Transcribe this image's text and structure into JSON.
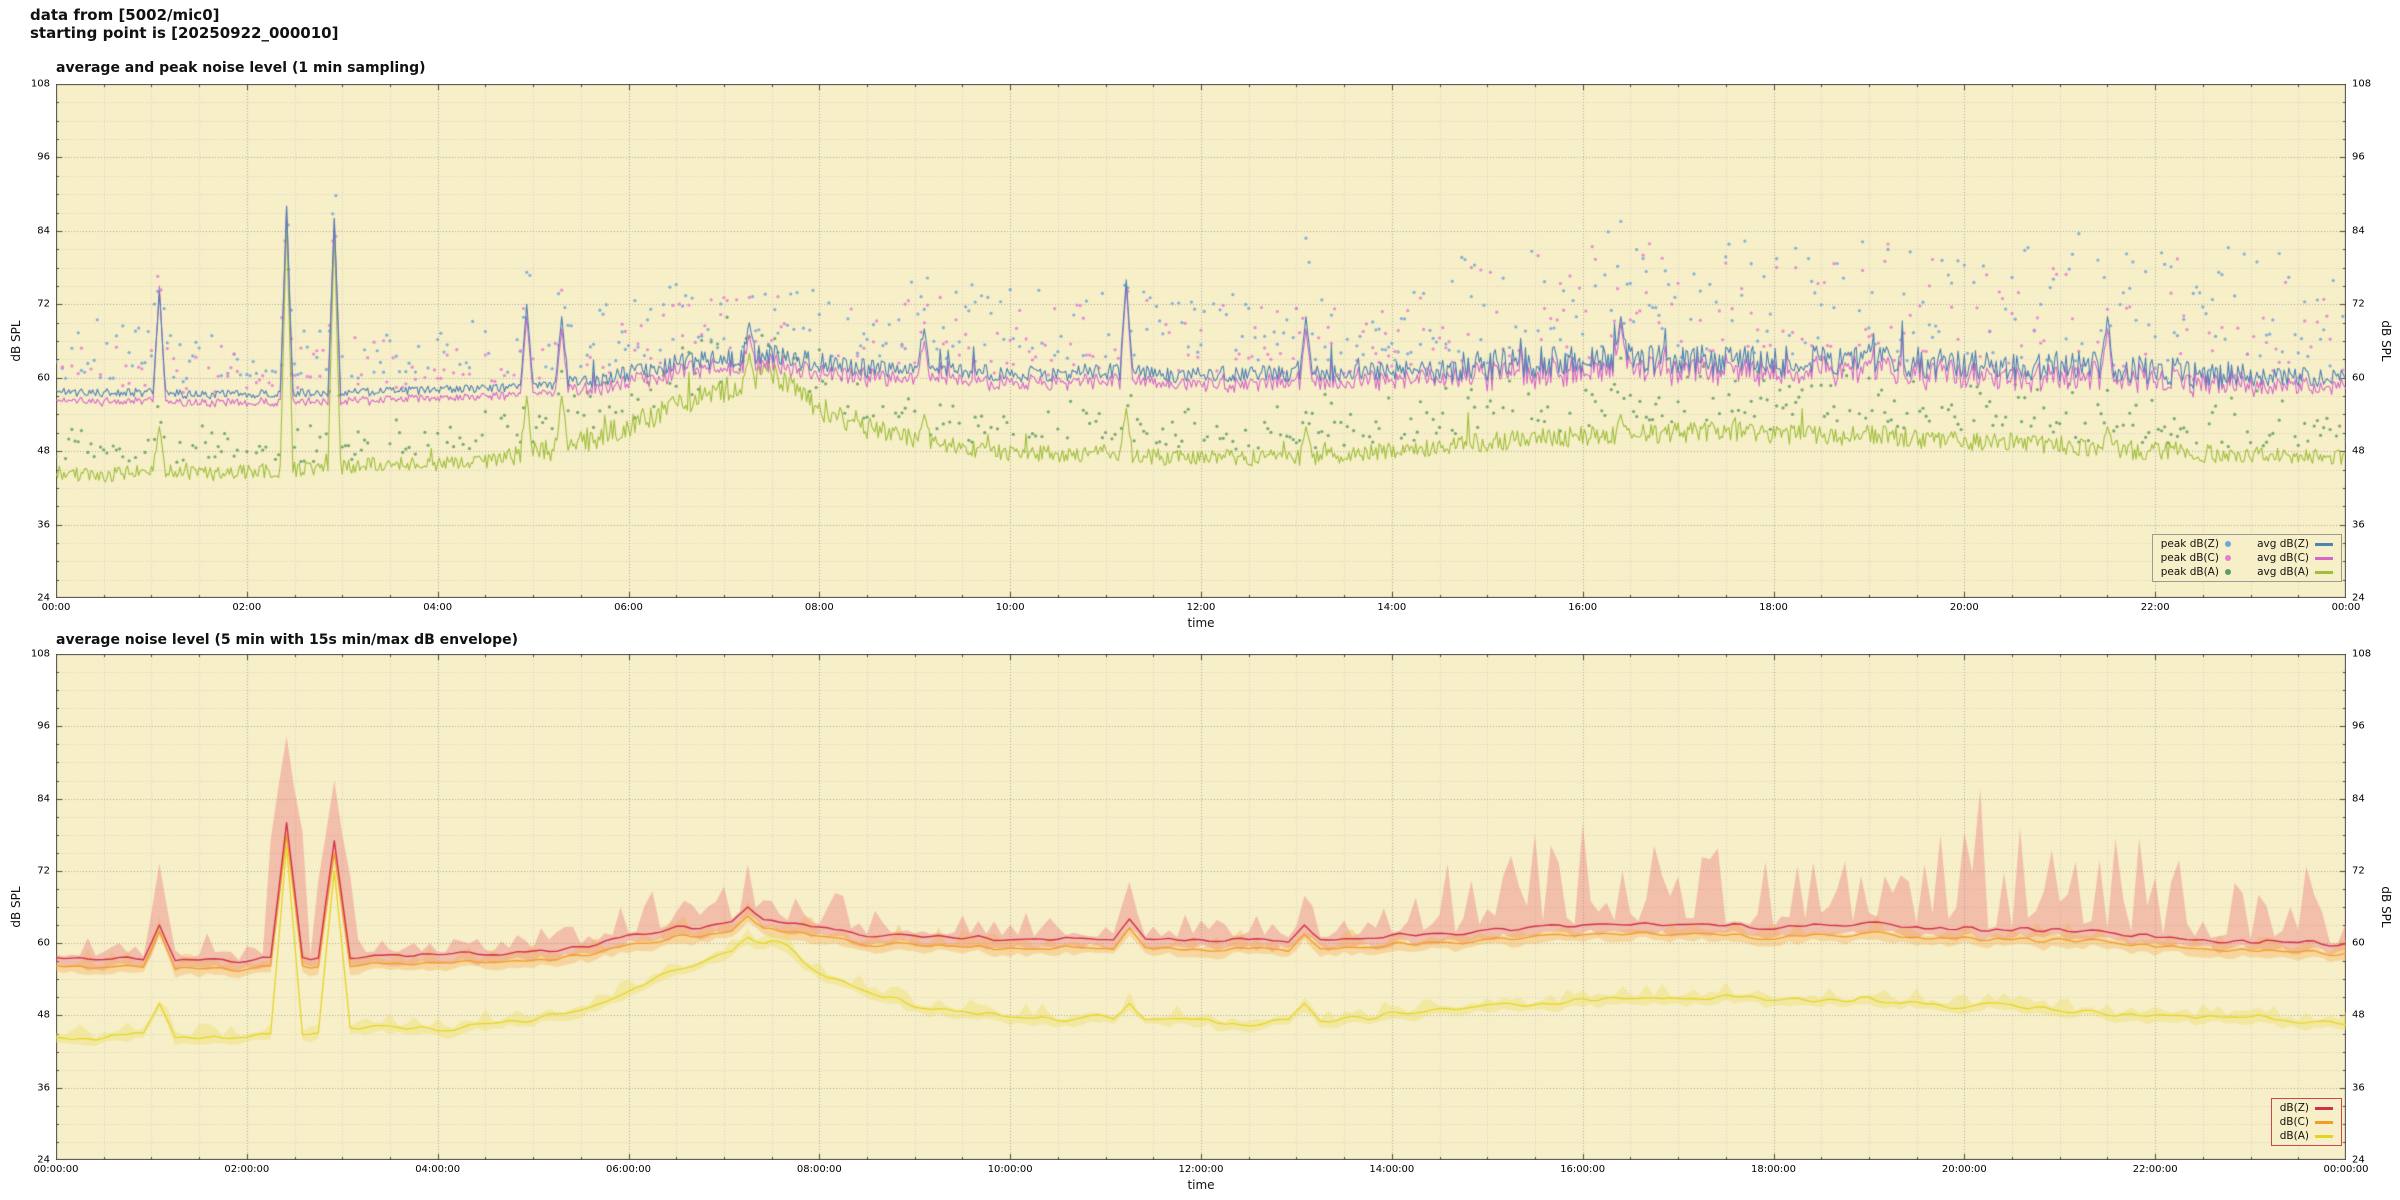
{
  "header": {
    "line1": "data from [5002/mic0]",
    "line2": "starting point is [20250922_000010]"
  },
  "colors": {
    "plot_bg": "#f7efc8",
    "grid_major": "#9a9a96",
    "grid_minor": "#c4beac",
    "border": "#4a4a46",
    "avg_z": "#4e81b4",
    "avg_c": "#d668c8",
    "avg_a": "#9fbf3b",
    "peak_z": "#6fa6dc",
    "peak_c": "#e77ad2",
    "peak_a": "#5f9d62",
    "db_z": "#d23050",
    "db_c": "#f29e24",
    "db_a": "#e6d51e",
    "env_z": "rgba(231,112,121,0.38)",
    "env_c": "rgba(246,178,96,0.40)",
    "env_a": "rgba(236,221,110,0.42)",
    "legend_border_1": "#9a9a96",
    "legend_border_2": "#cc4455"
  },
  "chart_data": [
    {
      "type": "line+scatter",
      "title": "average and peak noise level (1 min sampling)",
      "xlabel": "time",
      "ylabel": "dB SPL",
      "ylim": [
        24,
        108
      ],
      "y_ticks": [
        24,
        36,
        48,
        60,
        72,
        84,
        96,
        108
      ],
      "x_range_hours": [
        0,
        24
      ],
      "x_tick_labels": [
        "00:00",
        "02:00",
        "04:00",
        "06:00",
        "08:00",
        "10:00",
        "12:00",
        "14:00",
        "16:00",
        "18:00",
        "20:00",
        "22:00",
        "00:00"
      ],
      "anchor_hours_step": 0.5,
      "series": [
        {
          "name": "avg dB(Z)",
          "kind": "line",
          "color_key": "avg_z",
          "values": [
            57.8,
            57.5,
            57.6,
            57.2,
            57.3,
            57.5,
            57.6,
            57.8,
            58.0,
            58.2,
            58.6,
            59.5,
            61.0,
            62.5,
            63.0,
            64.0,
            62.5,
            61.5,
            61.2,
            61.0,
            60.6,
            60.8,
            61.0,
            60.6,
            60.4,
            60.6,
            60.5,
            60.8,
            61.2,
            61.5,
            62.0,
            62.5,
            63.0,
            63.2,
            63.0,
            62.8,
            62.6,
            62.8,
            63.0,
            62.6,
            62.4,
            62.2,
            62.0,
            61.6,
            61.0,
            60.6,
            60.4,
            60.2,
            59.8
          ]
        },
        {
          "name": "avg dB(C)",
          "kind": "line",
          "color_key": "avg_c",
          "values": [
            56.4,
            56.1,
            56.2,
            55.8,
            55.9,
            56.1,
            56.2,
            56.4,
            56.6,
            56.8,
            57.2,
            58.1,
            59.5,
            61.0,
            61.5,
            62.5,
            61.0,
            60.0,
            59.7,
            59.5,
            59.1,
            59.3,
            59.5,
            59.1,
            58.9,
            59.1,
            59.0,
            59.3,
            59.7,
            60.0,
            60.5,
            61.0,
            61.4,
            61.6,
            61.4,
            61.2,
            61.0,
            61.2,
            61.4,
            61.0,
            60.8,
            60.6,
            60.4,
            60.0,
            59.5,
            59.1,
            58.9,
            58.7,
            58.3
          ]
        },
        {
          "name": "avg dB(A)",
          "kind": "line",
          "color_key": "avg_a",
          "values": [
            44.5,
            44.0,
            45.0,
            44.2,
            44.6,
            45.0,
            45.4,
            46.0,
            45.8,
            46.2,
            47.5,
            49.5,
            52.0,
            55.5,
            58.0,
            61.0,
            55.0,
            52.0,
            50.0,
            48.5,
            47.8,
            47.5,
            47.8,
            47.0,
            47.2,
            46.8,
            47.0,
            47.4,
            48.0,
            48.6,
            49.5,
            50.0,
            50.5,
            50.8,
            51.0,
            51.4,
            50.8,
            50.4,
            50.8,
            50.0,
            49.6,
            49.8,
            48.8,
            48.4,
            48.0,
            47.6,
            47.6,
            47.2,
            46.8
          ]
        },
        {
          "name": "peak dB(Z)",
          "kind": "scatter",
          "color_key": "peak_z",
          "offset": 2.5,
          "prob": 0.6,
          "spread": {
            "t": [
              0,
              5,
              6,
              8.5,
              9,
              14,
              14.5,
              23,
              24
            ],
            "v": [
              9,
              9,
              11,
              11,
              12,
              12,
              18,
              18,
              13
            ]
          }
        },
        {
          "name": "peak dB(C)",
          "kind": "scatter",
          "color_key": "peak_c",
          "offset": 2.2,
          "prob": 0.55,
          "spread": {
            "t": [
              0,
              5,
              6,
              8.5,
              9,
              14,
              14.5,
              23,
              24
            ],
            "v": [
              8,
              8,
              10,
              10,
              11,
              11,
              17,
              17,
              12
            ]
          }
        },
        {
          "name": "peak dB(A)",
          "kind": "scatter",
          "color_key": "peak_a",
          "offset": 2.2,
          "prob": 0.65,
          "spread": {
            "t": [
              0,
              5,
              6,
              8.5,
              9,
              14,
              14.5,
              23,
              24
            ],
            "v": [
              5,
              5,
              8,
              8,
              6,
              6,
              8,
              8,
              6
            ]
          }
        }
      ],
      "jitter": {
        "z": {
          "t": [
            0,
            5,
            5.5,
            8.5,
            9,
            14,
            14.5,
            22.5,
            23,
            24
          ],
          "v": [
            0.7,
            0.7,
            1.6,
            1.6,
            1.3,
            1.5,
            2.6,
            2.6,
            1.8,
            1.5
          ]
        },
        "c": {
          "t": [
            0,
            5,
            5.5,
            8.5,
            9,
            14,
            14.5,
            22.5,
            23,
            24
          ],
          "v": [
            0.7,
            0.7,
            1.6,
            1.6,
            1.3,
            1.5,
            2.6,
            2.6,
            1.8,
            1.5
          ]
        },
        "a": {
          "t": [
            0,
            4.5,
            5,
            8.5,
            9,
            14,
            15,
            22,
            24
          ],
          "v": [
            1.2,
            1.2,
            2.0,
            2.0,
            1.4,
            1.4,
            1.7,
            1.6,
            1.3
          ]
        }
      },
      "spikes": [
        {
          "t": 1.08,
          "z": 74,
          "c": 75,
          "a": 52
        },
        {
          "t": 2.42,
          "z": 88,
          "c": 88,
          "a": 86
        },
        {
          "t": 2.92,
          "z": 86,
          "c": 86,
          "a": 84
        },
        {
          "t": 4.93,
          "z": 72,
          "c": 70,
          "a": 57
        },
        {
          "t": 5.3,
          "z": 70,
          "c": 68,
          "a": 57
        },
        {
          "t": 7.27,
          "z": 69,
          "c": 67,
          "a": 64
        },
        {
          "t": 9.1,
          "z": 68,
          "c": 66,
          "a": 54
        },
        {
          "t": 11.22,
          "z": 76,
          "c": 75,
          "a": 55
        },
        {
          "t": 13.1,
          "z": 70,
          "c": 68,
          "a": 52
        },
        {
          "t": 16.4,
          "z": 70,
          "c": 69,
          "a": 54
        },
        {
          "t": 21.5,
          "z": 70,
          "c": 68,
          "a": 52
        }
      ],
      "legend": {
        "items": [
          {
            "marker": "dot",
            "color_key": "peak_z",
            "label": "peak dB(Z)"
          },
          {
            "marker": "dot",
            "color_key": "peak_c",
            "label": "peak dB(C)"
          },
          {
            "marker": "dot",
            "color_key": "peak_a",
            "label": "peak dB(A)"
          },
          {
            "marker": "line",
            "color_key": "avg_z",
            "label": "avg dB(Z)"
          },
          {
            "marker": "line",
            "color_key": "avg_c",
            "label": "avg dB(C)"
          },
          {
            "marker": "line",
            "color_key": "avg_a",
            "label": "avg dB(A)"
          }
        ]
      }
    },
    {
      "type": "line+band",
      "title": "average noise level (5 min with 15s min/max dB envelope)",
      "xlabel": "time",
      "ylabel": "dB SPL",
      "ylim": [
        24,
        108
      ],
      "y_ticks": [
        24,
        36,
        48,
        60,
        72,
        84,
        96,
        108
      ],
      "x_range_hours": [
        0,
        24
      ],
      "x_tick_labels": [
        "00:00:00",
        "02:00:00",
        "04:00:00",
        "06:00:00",
        "08:00:00",
        "10:00:00",
        "12:00:00",
        "14:00:00",
        "16:00:00",
        "18:00:00",
        "20:00:00",
        "22:00:00",
        "00:00:00"
      ],
      "anchor_hours_step": 0.5,
      "series": [
        {
          "name": "dB(Z)",
          "kind": "line",
          "color_key": "db_z",
          "values": [
            57.8,
            57.5,
            57.6,
            57.2,
            57.3,
            57.5,
            57.6,
            57.8,
            58.0,
            58.2,
            58.6,
            59.5,
            61.0,
            62.5,
            63.0,
            64.0,
            62.5,
            61.5,
            61.2,
            61.0,
            60.6,
            60.8,
            61.0,
            60.6,
            60.4,
            60.6,
            60.5,
            60.8,
            61.2,
            61.5,
            62.0,
            62.5,
            63.0,
            63.2,
            63.0,
            62.8,
            62.6,
            62.8,
            63.0,
            62.6,
            62.4,
            62.2,
            62.0,
            61.6,
            61.0,
            60.6,
            60.4,
            60.2,
            59.8
          ]
        },
        {
          "name": "dB(C)",
          "kind": "line",
          "color_key": "db_c",
          "values": [
            56.4,
            56.1,
            56.2,
            55.8,
            55.9,
            56.1,
            56.2,
            56.4,
            56.6,
            56.8,
            57.2,
            58.1,
            59.5,
            61.0,
            61.5,
            62.5,
            61.0,
            60.0,
            59.7,
            59.5,
            59.1,
            59.3,
            59.5,
            59.1,
            58.9,
            59.1,
            59.0,
            59.3,
            59.7,
            60.0,
            60.5,
            61.0,
            61.4,
            61.6,
            61.4,
            61.2,
            61.0,
            61.2,
            61.4,
            61.0,
            60.8,
            60.6,
            60.4,
            60.0,
            59.5,
            59.1,
            58.9,
            58.7,
            58.3
          ]
        },
        {
          "name": "dB(A)",
          "kind": "line",
          "color_key": "db_a",
          "values": [
            44.5,
            44.0,
            45.0,
            44.2,
            44.6,
            45.0,
            45.4,
            46.0,
            45.8,
            46.2,
            47.5,
            49.5,
            52.0,
            55.5,
            58.0,
            61.0,
            55.0,
            52.0,
            50.0,
            48.5,
            47.8,
            47.5,
            47.8,
            47.0,
            47.2,
            46.8,
            47.0,
            47.4,
            48.0,
            48.6,
            49.5,
            50.0,
            50.5,
            50.8,
            51.0,
            51.4,
            50.8,
            50.4,
            50.8,
            50.0,
            49.6,
            49.8,
            48.8,
            48.4,
            48.0,
            47.6,
            47.6,
            47.2,
            46.8
          ]
        }
      ],
      "envelope_up": {
        "z": {
          "t": [
            0,
            5,
            5.5,
            8.5,
            9,
            14,
            14.3,
            23,
            23.5,
            24
          ],
          "v": [
            1.5,
            1.5,
            3.5,
            3.5,
            2.5,
            3.0,
            9.0,
            9.0,
            5.0,
            4.0
          ]
        },
        "c": {
          "t": [
            0,
            24
          ],
          "v": [
            1.8,
            1.8
          ]
        },
        "a": {
          "t": [
            0,
            24
          ],
          "v": [
            1.4,
            1.4
          ]
        }
      },
      "spikes": [
        {
          "t": 1.08,
          "z": 63,
          "c": 62,
          "a": 50,
          "env": 75
        },
        {
          "t": 2.42,
          "z": 80,
          "c": 78,
          "a": 76,
          "env": 95
        },
        {
          "t": 2.92,
          "z": 77,
          "c": 75,
          "a": 72,
          "env": 88
        },
        {
          "t": 7.27,
          "z": 66,
          "c": 64.5,
          "a": 61,
          "env": 72
        },
        {
          "t": 11.22,
          "z": 64,
          "c": 62.5,
          "a": 50,
          "env": 70
        },
        {
          "t": 13.1,
          "z": 63,
          "c": 61.5,
          "a": 50,
          "env": 68
        }
      ],
      "legend": {
        "items": [
          {
            "marker": "line",
            "color_key": "db_z",
            "label": "dB(Z)"
          },
          {
            "marker": "line",
            "color_key": "db_c",
            "label": "dB(C)"
          },
          {
            "marker": "line",
            "color_key": "db_a",
            "label": "dB(A)"
          }
        ]
      }
    }
  ]
}
